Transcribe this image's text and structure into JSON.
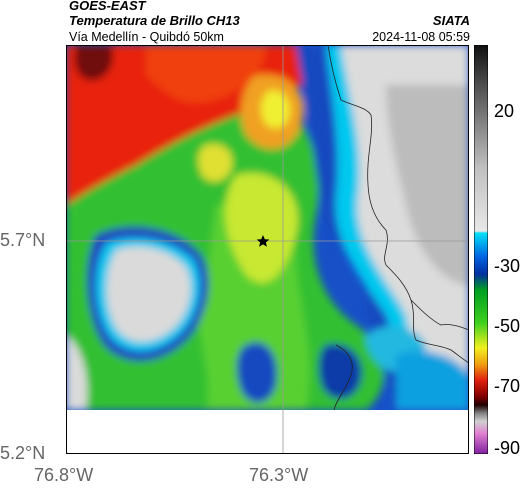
{
  "header": {
    "satellite": "GOES-EAST",
    "product": "Temperatura de Brillo CH13",
    "location": "Vía Medellín - Quibdó 50km",
    "agency": "SIATA",
    "datetime": "2024-11-08 05:59"
  },
  "map": {
    "lat_ticks": [
      "5.7°N",
      "5.2°N"
    ],
    "lon_ticks": [
      "76.8°W",
      "76.3°W"
    ],
    "marker": "star-marker"
  },
  "colorbar": {
    "ticks": [
      "20",
      "-30",
      "-50",
      "-70",
      "-90"
    ],
    "colors": {
      "warm": "#c8c8c8",
      "cyan": "#00d8f0",
      "blue": "#1040c0",
      "green": "#20c020",
      "yellow": "#f0f020",
      "orange": "#f07010",
      "red": "#e01010",
      "darkred": "#600000",
      "magenta": "#c040b0"
    }
  }
}
